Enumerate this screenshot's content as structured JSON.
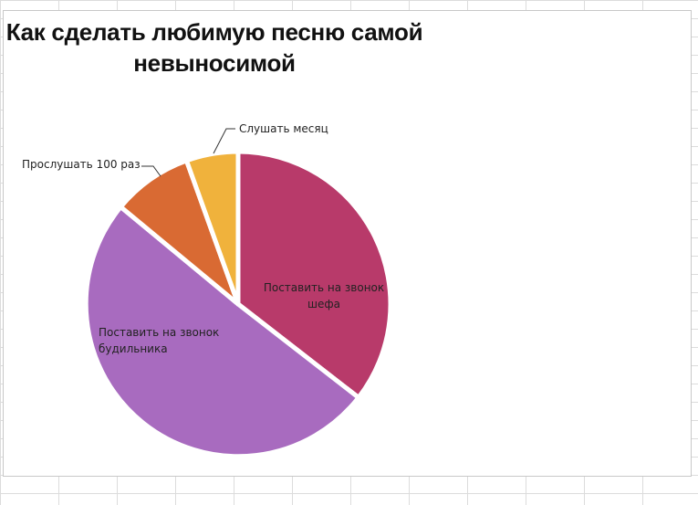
{
  "chart_data": {
    "type": "pie",
    "title": "Как сделать любимую песню самой невыносимой",
    "slices": [
      {
        "label": "Поставить на звонок шефа",
        "value": 35.5,
        "color": "#b83a6a"
      },
      {
        "label": "Поставить на звонок будильника",
        "value": 50.5,
        "color": "#a86bbf"
      },
      {
        "label": "Прослушать 100 раз",
        "value": 8.5,
        "color": "#d96a33"
      },
      {
        "label": "Слушать месяц",
        "value": 5.5,
        "color": "#f0b23c"
      }
    ],
    "start_angle_deg": 0,
    "direction": "clockwise",
    "legend": "none",
    "data_labels": "category name"
  }
}
